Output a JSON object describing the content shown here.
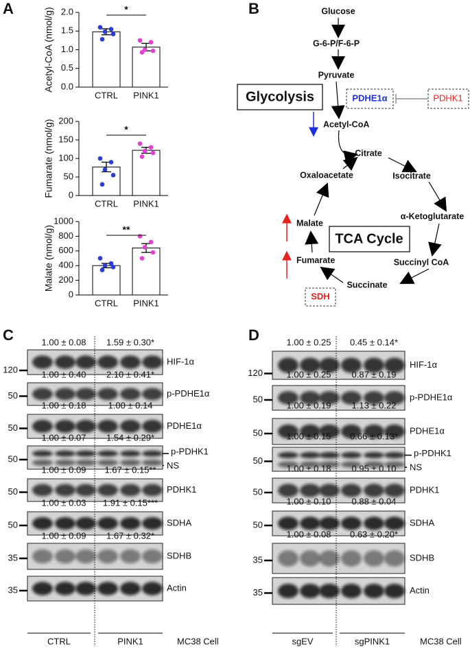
{
  "panel_labels": [
    "A",
    "B",
    "C",
    "D"
  ],
  "chart_data": [
    {
      "type": "bar",
      "y_label": "Acetyl-CoA (nmol/g)",
      "categories": [
        "CTRL",
        "PINK1"
      ],
      "values": [
        1.48,
        1.07
      ],
      "errors": [
        0.08,
        0.1
      ],
      "points": [
        [
          1.6,
          1.55,
          1.48,
          1.42,
          1.28
        ],
        [
          1.25,
          1.2,
          1.0,
          0.97,
          0.93
        ]
      ],
      "point_colors": [
        "#2a3bd8",
        "#e23fd6"
      ],
      "bar_color": "#ffffff",
      "significance": "*",
      "ylim": [
        0,
        2
      ],
      "yticks": [
        {
          "value": 0,
          "label": "0.0"
        },
        0.5,
        {
          "value": 1,
          "label": "1.0"
        },
        1.5,
        {
          "value": 2,
          "label": "2.0"
        }
      ]
    },
    {
      "type": "bar",
      "y_label": "Fumarate (nmol/g)",
      "categories": [
        "CTRL",
        "PINK1"
      ],
      "values": [
        77,
        122
      ],
      "errors": [
        13,
        8
      ],
      "points": [
        [
          100,
          90,
          70,
          55,
          30
        ],
        [
          140,
          130,
          120,
          115,
          105
        ]
      ],
      "point_colors": [
        "#2a3bd8",
        "#e23fd6"
      ],
      "bar_color": "#ffffff",
      "significance": "*",
      "ylim": [
        0,
        200
      ],
      "yticks": [
        0,
        50,
        100,
        150,
        200
      ]
    },
    {
      "type": "bar",
      "y_label": "Malate (nmol/g)",
      "categories": [
        "CTRL",
        "PINK1"
      ],
      "values": [
        400,
        640
      ],
      "errors": [
        30,
        60
      ],
      "points": [
        [
          500,
          430,
          400,
          380,
          340
        ],
        [
          800,
          720,
          650,
          580,
          500
        ]
      ],
      "point_colors": [
        "#2a3bd8",
        "#e23fd6"
      ],
      "bar_color": "#ffffff",
      "significance": "**",
      "ylim": [
        0,
        1000
      ],
      "yticks": [
        0,
        200,
        400,
        600,
        800,
        1000
      ]
    }
  ],
  "diagram": {
    "nodes": [
      "Glucose",
      "G-6-P/F-6-P",
      "Pyruvate",
      "Acetyl-CoA",
      "Citrate",
      "Isocitrate",
      "α-Ketoglutarate",
      "Succinyl CoA",
      "Succinate",
      "Fumarate",
      "Malate",
      "Oxaloacetate"
    ],
    "glycolysis": "Glycolysis",
    "cycle": "TCA Cycle",
    "enzymes": [
      "PDHE1α",
      "PDHK1",
      "SDH"
    ]
  },
  "blots": [
    {
      "rows": [
        {
          "quant": [
            "1.00 ± 0.08",
            "1.59 ± 0.30*"
          ],
          "protein": "HIF-1α",
          "marker": 120
        },
        {
          "quant": [
            "1.00 ± 0.40",
            "2.10 ± 0.41*"
          ],
          "protein": "p-PDHE1α",
          "marker": 50
        },
        {
          "quant": [
            "1.00 ± 0.18",
            "1.00 ± 0.14"
          ],
          "protein": "PDHE1α",
          "marker": 50
        },
        {
          "quant": [
            "1.00 ± 0.07",
            "1.54 ± 0.29*"
          ],
          "protein": "p-PDHK1",
          "extra_label": "NS",
          "marker": 50
        },
        {
          "quant": [
            "1.00 ± 0.09",
            "1.67 ± 0.15**"
          ],
          "protein": "PDHK1",
          "marker": 50
        },
        {
          "quant": [
            "1.00 ± 0.03",
            "1.91 ± 0.15***"
          ],
          "protein": "SDHA",
          "marker": 50
        },
        {
          "quant": [
            "1.00 ± 0.09",
            "1.67 ± 0.32*"
          ],
          "protein": "SDHB",
          "marker": 35
        },
        {
          "protein": "Actin",
          "marker": 35
        }
      ],
      "groups": [
        "CTRL",
        "PINK1"
      ],
      "cell": "MC38 Cell"
    },
    {
      "rows": [
        {
          "quant": [
            "1.00 ± 0.25",
            "0.45 ± 0.14*"
          ],
          "protein": "HIF-1α",
          "marker": 120
        },
        {
          "quant": [
            "1.00 ± 0.25",
            "0.87 ± 0.19"
          ],
          "protein": "p-PDHE1α",
          "marker": 50
        },
        {
          "quant": [
            "1.00 ± 0.19",
            "1.13 ± 0.22"
          ],
          "protein": "PDHE1α",
          "marker": 50
        },
        {
          "quant": [
            "1.00 ± 0.15",
            "0.66 ± 0.13*"
          ],
          "protein": "p-PDHK1",
          "extra_label": "NS",
          "marker": 50
        },
        {
          "quant": [
            "1.00 ± 0.18",
            "0.95 ± 0.10"
          ],
          "protein": "PDHK1",
          "marker": 50
        },
        {
          "quant": [
            "1.00 ± 0.10",
            "0.88 ± 0.04"
          ],
          "protein": "SDHA",
          "marker": 50
        },
        {
          "quant": [
            "1.00 ± 0.08",
            "0.63 ± 0.20*"
          ],
          "protein": "SDHB",
          "marker": 35
        },
        {
          "protein": "Actin",
          "marker": 35
        }
      ],
      "groups": [
        "sgEV",
        "sgPINK1"
      ],
      "cell": "MC38 Cell"
    }
  ]
}
